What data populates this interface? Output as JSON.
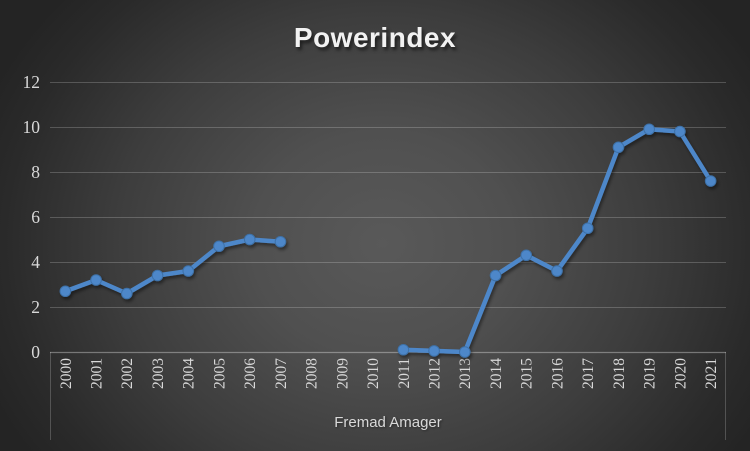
{
  "chart": {
    "title": "Powerindex",
    "xlabel": "Fremad Amager"
  },
  "chart_data": {
    "type": "line",
    "title": "Powerindex",
    "xlabel": "Fremad Amager",
    "ylabel": "",
    "categories": [
      "2000",
      "2001",
      "2002",
      "2003",
      "2004",
      "2005",
      "2006",
      "2007",
      "2008",
      "2009",
      "2010",
      "2011",
      "2012",
      "2013",
      "2014",
      "2015",
      "2016",
      "2017",
      "2018",
      "2019",
      "2020",
      "2021"
    ],
    "series": [
      {
        "name": "Fremad Amager",
        "values": [
          2.7,
          3.2,
          2.6,
          3.4,
          3.6,
          4.7,
          5.0,
          4.9,
          null,
          null,
          null,
          0.1,
          0.05,
          0,
          3.4,
          4.3,
          3.6,
          5.5,
          9.1,
          9.9,
          9.8,
          7.6
        ]
      }
    ],
    "ylim": [
      0,
      12
    ],
    "yticks": [
      0,
      2,
      4,
      6,
      8,
      10,
      12
    ],
    "grid": true,
    "legend": false
  },
  "colors": {
    "line": "#4d87c9",
    "marker_edge": "#3e71a8",
    "tick_text": "#d9d9d9",
    "title_text": "#f2f2f2",
    "gridline": "rgba(255,255,255,0.20)",
    "axis_line": "rgba(255,255,255,0.34)"
  }
}
